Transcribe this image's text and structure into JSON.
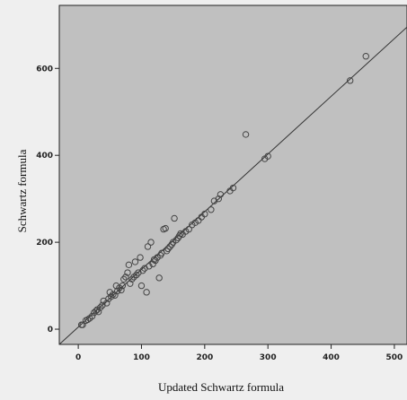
{
  "chart_data": {
    "type": "scatter",
    "title": "",
    "xlabel": "Updated Schwartz formula",
    "ylabel": "Schwartz formula",
    "xlim": [
      -30,
      520
    ],
    "ylim": [
      -35,
      745
    ],
    "x_ticks": [
      0,
      100,
      200,
      300,
      400,
      500
    ],
    "y_ticks": [
      0,
      200,
      400,
      600
    ],
    "x_tick_labels": [
      "0",
      "100",
      "200",
      "300",
      "400",
      "500"
    ],
    "y_tick_labels": [
      "0",
      "200",
      "400",
      "600"
    ],
    "grid": false,
    "plot_background": "#c0c0c0",
    "marker_color": "#444444",
    "fit_line": {
      "x": [
        -30,
        520
      ],
      "y": [
        -35,
        695
      ]
    },
    "series": [
      {
        "points": [
          [
            5,
            10
          ],
          [
            7,
            10
          ],
          [
            12,
            20
          ],
          [
            15,
            22
          ],
          [
            18,
            25
          ],
          [
            22,
            30
          ],
          [
            25,
            38
          ],
          [
            28,
            42
          ],
          [
            30,
            45
          ],
          [
            32,
            40
          ],
          [
            35,
            50
          ],
          [
            38,
            55
          ],
          [
            40,
            65
          ],
          [
            45,
            60
          ],
          [
            48,
            70
          ],
          [
            50,
            85
          ],
          [
            52,
            75
          ],
          [
            55,
            80
          ],
          [
            58,
            78
          ],
          [
            60,
            100
          ],
          [
            62,
            88
          ],
          [
            65,
            95
          ],
          [
            68,
            90
          ],
          [
            70,
            100
          ],
          [
            72,
            115
          ],
          [
            75,
            120
          ],
          [
            78,
            130
          ],
          [
            80,
            148
          ],
          [
            82,
            105
          ],
          [
            85,
            115
          ],
          [
            88,
            120
          ],
          [
            90,
            155
          ],
          [
            92,
            125
          ],
          [
            95,
            130
          ],
          [
            98,
            165
          ],
          [
            100,
            100
          ],
          [
            102,
            135
          ],
          [
            105,
            140
          ],
          [
            108,
            85
          ],
          [
            110,
            190
          ],
          [
            112,
            145
          ],
          [
            115,
            200
          ],
          [
            118,
            150
          ],
          [
            120,
            160
          ],
          [
            122,
            158
          ],
          [
            125,
            165
          ],
          [
            128,
            118
          ],
          [
            130,
            170
          ],
          [
            132,
            175
          ],
          [
            135,
            230
          ],
          [
            138,
            232
          ],
          [
            140,
            180
          ],
          [
            142,
            185
          ],
          [
            145,
            190
          ],
          [
            148,
            195
          ],
          [
            150,
            200
          ],
          [
            152,
            255
          ],
          [
            155,
            205
          ],
          [
            158,
            210
          ],
          [
            160,
            215
          ],
          [
            162,
            220
          ],
          [
            165,
            218
          ],
          [
            170,
            225
          ],
          [
            175,
            230
          ],
          [
            180,
            240
          ],
          [
            185,
            245
          ],
          [
            190,
            250
          ],
          [
            195,
            258
          ],
          [
            200,
            265
          ],
          [
            210,
            275
          ],
          [
            215,
            295
          ],
          [
            222,
            300
          ],
          [
            225,
            310
          ],
          [
            240,
            318
          ],
          [
            245,
            325
          ],
          [
            265,
            448
          ],
          [
            295,
            392
          ],
          [
            300,
            398
          ],
          [
            430,
            572
          ],
          [
            455,
            628
          ]
        ]
      }
    ]
  }
}
